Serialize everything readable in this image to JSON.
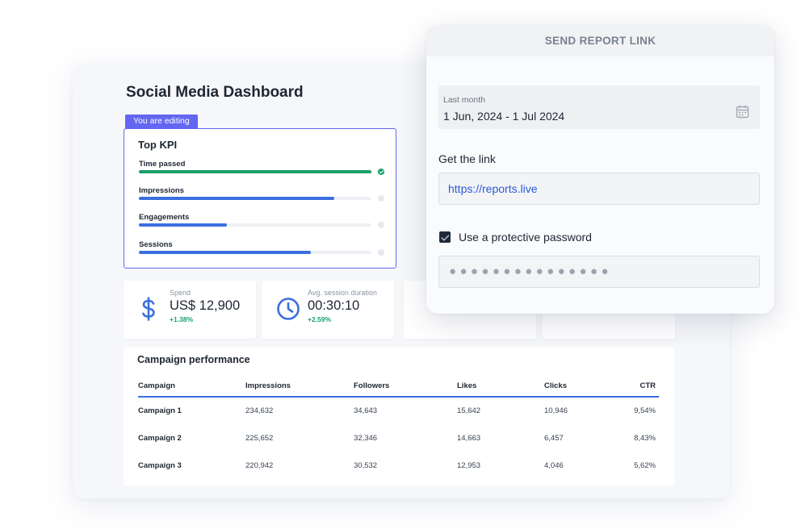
{
  "dashboard": {
    "title": "Social Media Dashboard",
    "editing_badge": "You are editing",
    "kpi": {
      "title": "Top KPI",
      "items": [
        {
          "label": "Time passed",
          "progress": 1.0,
          "complete": true
        },
        {
          "label": "Impressions",
          "progress": 0.84,
          "complete": false
        },
        {
          "label": "Engagements",
          "progress": 0.38,
          "complete": false
        },
        {
          "label": "Sessions",
          "progress": 0.74,
          "complete": false
        }
      ]
    },
    "metrics": [
      {
        "label": "Spend",
        "value": "US$ 12,900",
        "change": "+1.38%",
        "icon": "dollar-icon"
      },
      {
        "label": "Avg. session duration",
        "value": "00:30:10",
        "change": "+2.59%",
        "icon": "clock-icon"
      }
    ],
    "campaign": {
      "title": "Campaign performance",
      "columns": [
        "Campaign",
        "Impressions",
        "Followers",
        "Likes",
        "Clicks",
        "CTR"
      ],
      "rows": [
        [
          "Campaign 1",
          "234,632",
          "34,643",
          "15,642",
          "10,946",
          "9,54%"
        ],
        [
          "Campaign 2",
          "225,652",
          "32,346",
          "14,663",
          "6,457",
          "8,43%"
        ],
        [
          "Campaign 3",
          "220,942",
          "30,532",
          "12,953",
          "4,046",
          "5,62%"
        ]
      ]
    }
  },
  "popup": {
    "title": "SEND REPORT LINK",
    "date_range": {
      "label": "Last month",
      "value": "1 Jun, 2024 - 1 Jul 2024",
      "icon": "calendar-icon"
    },
    "link": {
      "label": "Get the link",
      "value": "https://reports.live"
    },
    "password": {
      "checkbox_label": "Use a protective password",
      "checked": true,
      "masked_value": "●●●●●●●●●●●●●●●"
    }
  },
  "colors": {
    "accent": "#6366f1",
    "primary_blue": "#3b6fe0",
    "success_green": "#16a06a",
    "link_blue": "#2a5bd7"
  }
}
